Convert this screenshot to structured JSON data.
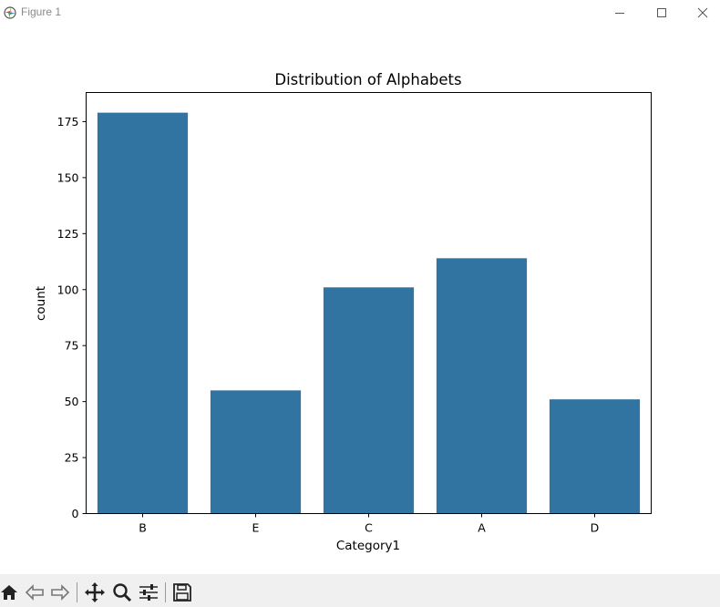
{
  "window": {
    "title": "Figure 1",
    "icons": [
      "matplotlib-icon",
      "minimize-icon",
      "maximize-icon",
      "close-icon"
    ]
  },
  "toolbar": {
    "buttons": [
      "home-icon",
      "back-icon",
      "forward-icon",
      "pan-icon",
      "zoom-icon",
      "configure-subplots-icon",
      "save-icon"
    ]
  },
  "colors": {
    "bar": "#3274a1",
    "toolbar_bg": "#f0f0f0",
    "axis": "#000000"
  },
  "chart_data": {
    "type": "bar",
    "title": "Distribution of Alphabets",
    "xlabel": "Category1",
    "ylabel": "count",
    "categories": [
      "B",
      "E",
      "C",
      "A",
      "D"
    ],
    "values": [
      179,
      55,
      101,
      114,
      51
    ],
    "ylim": [
      0,
      188
    ],
    "yticks": [
      "0",
      "25",
      "50",
      "75",
      "100",
      "125",
      "150",
      "175"
    ],
    "grid": false,
    "legend": "none"
  }
}
